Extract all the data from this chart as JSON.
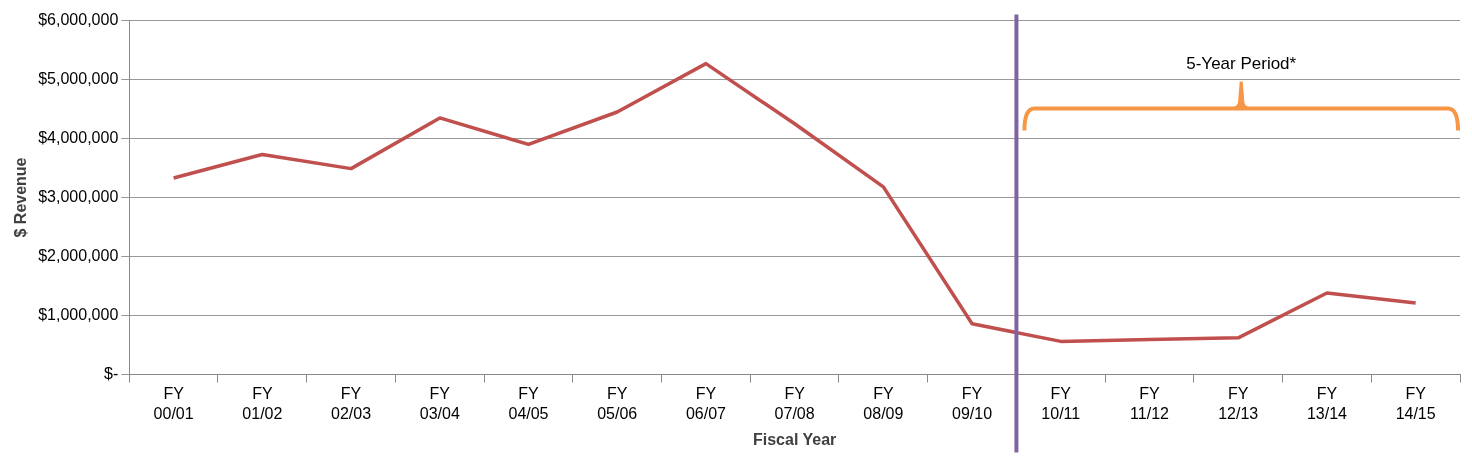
{
  "chart_data": {
    "type": "line",
    "xlabel": "Fiscal Year",
    "ylabel": "$ Revenue",
    "categories": [
      "FY 00/01",
      "FY 01/02",
      "FY 02/03",
      "FY 03/04",
      "FY 04/05",
      "FY 05/06",
      "FY 06/07",
      "FY 07/08",
      "FY 08/09",
      "FY 09/10",
      "FY 10/11",
      "FY 11/12",
      "FY 12/13",
      "FY 13/14",
      "FY 14/15"
    ],
    "series": [
      {
        "color": "#c0504d",
        "values": [
          3330000,
          3730000,
          3490000,
          4350000,
          3900000,
          4450000,
          5270000,
          4250000,
          3180000,
          860000,
          560000,
          590000,
          620000,
          1380000,
          1210000
        ]
      }
    ],
    "ylim": [
      0,
      6000000
    ],
    "yticks": [
      {
        "value": 0,
        "label": "$-"
      },
      {
        "value": 1000000,
        "label": "$1,000,000"
      },
      {
        "value": 2000000,
        "label": "$2,000,000"
      },
      {
        "value": 3000000,
        "label": "$3,000,000"
      },
      {
        "value": 4000000,
        "label": "$4,000,000"
      },
      {
        "value": 5000000,
        "label": "$5,000,000"
      },
      {
        "value": 6000000,
        "label": "$6,000,000"
      }
    ],
    "annotations": [
      "5-Year Period*"
    ],
    "ref_lines": [
      {
        "axis": "x",
        "value": "FY 10/11",
        "color": "#8064a2"
      }
    ],
    "grid": "y",
    "legend": false,
    "marker": "none",
    "line_style": "solid"
  }
}
